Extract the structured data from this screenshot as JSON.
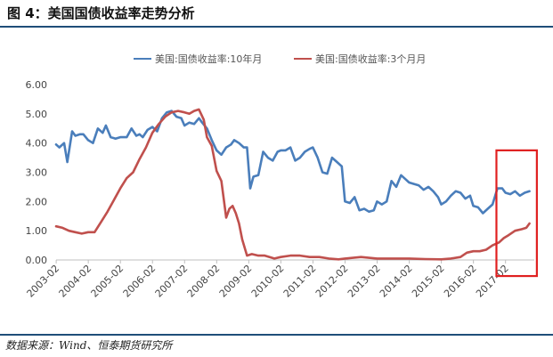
{
  "header": {
    "title": "图 4：美国国债收益率走势分析",
    "rule_color": "#1f4e79"
  },
  "footer": {
    "source": "数据来源：Wind、恒泰期货研究所"
  },
  "chart_data": {
    "type": "line",
    "title": "",
    "xlabel": "",
    "ylabel": "",
    "ylim": [
      0,
      6
    ],
    "yticks": [
      "0.00",
      "1.00",
      "2.00",
      "3.00",
      "4.00",
      "5.00",
      "6.00"
    ],
    "xlim": [
      2003.0,
      2017.9
    ],
    "xticks": [
      "2003-02",
      "2004-02",
      "2005-02",
      "2006-02",
      "2007-02",
      "2008-02",
      "2009-02",
      "2010-02",
      "2011-02",
      "2012-02",
      "2013-02",
      "2014-02",
      "2015-02",
      "2016-02",
      "2017-02"
    ],
    "grid": false,
    "legend_position": "top-center",
    "series": [
      {
        "name": "美国:国债收益率:10年月",
        "color": "#4a7ebb",
        "x": [
          2003.0,
          2003.1,
          2003.25,
          2003.35,
          2003.5,
          2003.6,
          2003.75,
          2003.85,
          2004.0,
          2004.15,
          2004.3,
          2004.45,
          2004.55,
          2004.7,
          2004.85,
          2005.0,
          2005.2,
          2005.35,
          2005.5,
          2005.6,
          2005.7,
          2005.85,
          2006.0,
          2006.15,
          2006.3,
          2006.45,
          2006.6,
          2006.75,
          2006.9,
          2007.0,
          2007.15,
          2007.3,
          2007.45,
          2007.55,
          2007.7,
          2007.85,
          2008.0,
          2008.15,
          2008.3,
          2008.45,
          2008.55,
          2008.7,
          2008.85,
          2008.95,
          2009.05,
          2009.15,
          2009.3,
          2009.45,
          2009.6,
          2009.75,
          2009.9,
          2010.0,
          2010.15,
          2010.3,
          2010.45,
          2010.6,
          2010.75,
          2010.9,
          2011.0,
          2011.15,
          2011.3,
          2011.45,
          2011.6,
          2011.75,
          2011.9,
          2012.0,
          2012.15,
          2012.3,
          2012.45,
          2012.6,
          2012.75,
          2012.9,
          2013.0,
          2013.15,
          2013.3,
          2013.45,
          2013.6,
          2013.75,
          2013.9,
          2014.0,
          2014.15,
          2014.3,
          2014.45,
          2014.6,
          2014.75,
          2014.9,
          2015.0,
          2015.15,
          2015.3,
          2015.45,
          2015.6,
          2015.75,
          2015.9,
          2016.0,
          2016.15,
          2016.3,
          2016.45,
          2016.6,
          2016.75,
          2016.9,
          2017.0,
          2017.15,
          2017.3,
          2017.45,
          2017.6,
          2017.75
        ],
        "values": [
          3.95,
          3.85,
          4.0,
          3.35,
          4.4,
          4.25,
          4.3,
          4.3,
          4.1,
          4.0,
          4.5,
          4.35,
          4.6,
          4.2,
          4.15,
          4.2,
          4.2,
          4.5,
          4.25,
          4.3,
          4.2,
          4.45,
          4.55,
          4.4,
          4.85,
          5.05,
          5.1,
          4.9,
          4.85,
          4.6,
          4.7,
          4.65,
          4.85,
          4.7,
          4.5,
          4.1,
          3.75,
          3.6,
          3.85,
          3.95,
          4.1,
          4.0,
          3.85,
          3.85,
          2.45,
          2.85,
          2.9,
          3.7,
          3.5,
          3.4,
          3.7,
          3.75,
          3.75,
          3.85,
          3.4,
          3.5,
          3.7,
          3.8,
          3.85,
          3.5,
          3.0,
          2.95,
          3.5,
          3.35,
          3.2,
          2.0,
          1.95,
          2.15,
          1.7,
          1.75,
          1.65,
          1.7,
          2.0,
          1.9,
          2.0,
          2.7,
          2.5,
          2.9,
          2.75,
          2.65,
          2.6,
          2.55,
          2.4,
          2.5,
          2.35,
          2.15,
          1.9,
          2.0,
          2.2,
          2.35,
          2.3,
          2.1,
          2.2,
          1.85,
          1.8,
          1.6,
          1.75,
          1.9,
          2.45,
          2.45,
          2.3,
          2.25,
          2.35,
          2.2,
          2.3,
          2.35
        ]
      },
      {
        "name": "美国:国债收益率:3个月月",
        "color": "#c0504d",
        "x": [
          2003.0,
          2003.2,
          2003.4,
          2003.6,
          2003.8,
          2004.0,
          2004.2,
          2004.4,
          2004.6,
          2004.8,
          2005.0,
          2005.2,
          2005.4,
          2005.6,
          2005.8,
          2006.0,
          2006.2,
          2006.4,
          2006.6,
          2006.8,
          2007.0,
          2007.15,
          2007.3,
          2007.45,
          2007.6,
          2007.7,
          2007.85,
          2008.0,
          2008.15,
          2008.3,
          2008.4,
          2008.5,
          2008.6,
          2008.7,
          2008.8,
          2008.95,
          2009.1,
          2009.3,
          2009.5,
          2009.8,
          2010.0,
          2010.3,
          2010.6,
          2010.9,
          2011.2,
          2011.5,
          2011.8,
          2012.0,
          2012.5,
          2013.0,
          2013.5,
          2014.0,
          2014.5,
          2015.0,
          2015.3,
          2015.6,
          2015.8,
          2016.0,
          2016.2,
          2016.4,
          2016.6,
          2016.8,
          2016.95,
          2017.1,
          2017.3,
          2017.5,
          2017.65,
          2017.75
        ],
        "values": [
          1.15,
          1.1,
          1.0,
          0.95,
          0.9,
          0.95,
          0.95,
          1.3,
          1.65,
          2.05,
          2.45,
          2.8,
          3.0,
          3.45,
          3.85,
          4.35,
          4.65,
          4.9,
          5.05,
          5.1,
          5.05,
          5.0,
          5.1,
          5.15,
          4.8,
          4.2,
          3.9,
          3.05,
          2.7,
          1.45,
          1.75,
          1.85,
          1.6,
          1.25,
          0.7,
          0.15,
          0.2,
          0.15,
          0.15,
          0.05,
          0.1,
          0.15,
          0.15,
          0.1,
          0.1,
          0.05,
          0.02,
          0.05,
          0.1,
          0.05,
          0.05,
          0.05,
          0.03,
          0.02,
          0.05,
          0.1,
          0.25,
          0.3,
          0.3,
          0.35,
          0.5,
          0.6,
          0.75,
          0.85,
          1.0,
          1.05,
          1.1,
          1.25
        ]
      }
    ],
    "annotations": [
      {
        "type": "rectangle",
        "label": "",
        "color": "#e02020",
        "x_range": [
          2016.72,
          2017.98
        ],
        "y_range": [
          -0.55,
          3.75
        ]
      }
    ]
  }
}
